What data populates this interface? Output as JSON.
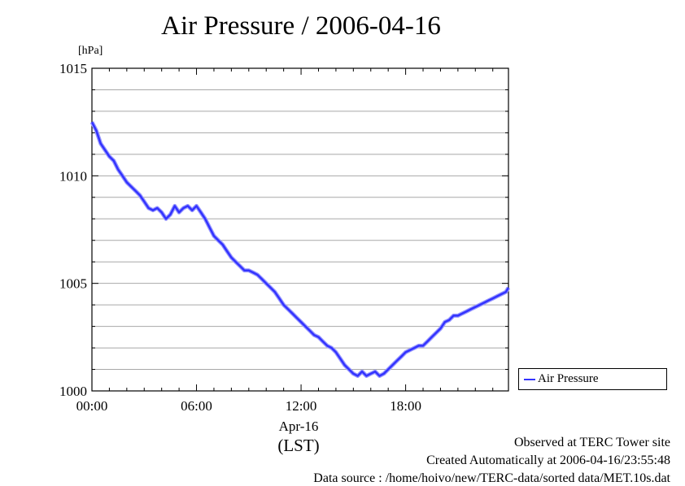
{
  "chart_data": {
    "type": "line",
    "title": "Air Pressure / 2006-04-16",
    "ylabel": "[hPa]",
    "xlabel_date": "Apr-16",
    "xlabel_unit": "(LST)",
    "ylim": [
      1000,
      1015
    ],
    "xlim": [
      0,
      23.9
    ],
    "y_ticks": [
      "1000",
      "1005",
      "1010",
      "1015"
    ],
    "x_ticks": [
      {
        "value": 0,
        "label": "00:00"
      },
      {
        "value": 6,
        "label": "06:00"
      },
      {
        "value": 12,
        "label": "12:00"
      },
      {
        "value": 18,
        "label": "18:00"
      }
    ],
    "grid": true,
    "legend_position": "right-bottom",
    "series": [
      {
        "name": "Air Pressure",
        "color": "#3333ff",
        "x": [
          0,
          0.25,
          0.5,
          0.75,
          1.0,
          1.25,
          1.5,
          1.75,
          2.0,
          2.25,
          2.5,
          2.75,
          3.0,
          3.25,
          3.5,
          3.75,
          4.0,
          4.25,
          4.5,
          4.75,
          5.0,
          5.25,
          5.5,
          5.75,
          6.0,
          6.25,
          6.5,
          6.75,
          7.0,
          7.25,
          7.5,
          7.75,
          8.0,
          8.25,
          8.5,
          8.75,
          9.0,
          9.25,
          9.5,
          9.75,
          10.0,
          10.25,
          10.5,
          10.75,
          11.0,
          11.25,
          11.5,
          11.75,
          12.0,
          12.25,
          12.5,
          12.75,
          13.0,
          13.25,
          13.5,
          13.75,
          14.0,
          14.25,
          14.5,
          14.75,
          15.0,
          15.25,
          15.5,
          15.75,
          16.0,
          16.25,
          16.5,
          16.75,
          17.0,
          17.25,
          17.5,
          17.75,
          18.0,
          18.25,
          18.5,
          18.75,
          19.0,
          19.25,
          19.5,
          19.75,
          20.0,
          20.25,
          20.5,
          20.75,
          21.0,
          21.25,
          21.5,
          21.75,
          22.0,
          22.25,
          22.5,
          22.75,
          23.0,
          23.25,
          23.5,
          23.75,
          23.9
        ],
        "values": [
          1012.5,
          1012.1,
          1011.5,
          1011.2,
          1010.9,
          1010.7,
          1010.3,
          1010.0,
          1009.7,
          1009.5,
          1009.3,
          1009.1,
          1008.8,
          1008.5,
          1008.4,
          1008.5,
          1008.3,
          1008.0,
          1008.2,
          1008.6,
          1008.3,
          1008.5,
          1008.6,
          1008.4,
          1008.6,
          1008.3,
          1008.0,
          1007.6,
          1007.2,
          1007.0,
          1006.8,
          1006.5,
          1006.2,
          1006.0,
          1005.8,
          1005.6,
          1005.6,
          1005.5,
          1005.4,
          1005.2,
          1005.0,
          1004.8,
          1004.6,
          1004.3,
          1004.0,
          1003.8,
          1003.6,
          1003.4,
          1003.2,
          1003.0,
          1002.8,
          1002.6,
          1002.5,
          1002.3,
          1002.1,
          1002.0,
          1001.8,
          1001.5,
          1001.2,
          1001.0,
          1000.8,
          1000.7,
          1000.9,
          1000.7,
          1000.8,
          1000.9,
          1000.7,
          1000.8,
          1001.0,
          1001.2,
          1001.4,
          1001.6,
          1001.8,
          1001.9,
          1002.0,
          1002.1,
          1002.1,
          1002.3,
          1002.5,
          1002.7,
          1002.9,
          1003.2,
          1003.3,
          1003.5,
          1003.5,
          1003.6,
          1003.7,
          1003.8,
          1003.9,
          1004.0,
          1004.1,
          1004.2,
          1004.3,
          1004.4,
          1004.5,
          1004.6,
          1004.8
        ]
      }
    ]
  },
  "footer": {
    "line1": "Observed at TERC Tower site",
    "line2": "Created Automatically at 2006-04-16/23:55:48",
    "line3": "Data source : /home/hoivo/new/TERC-data/sorted  data/MET.10s.dat"
  }
}
